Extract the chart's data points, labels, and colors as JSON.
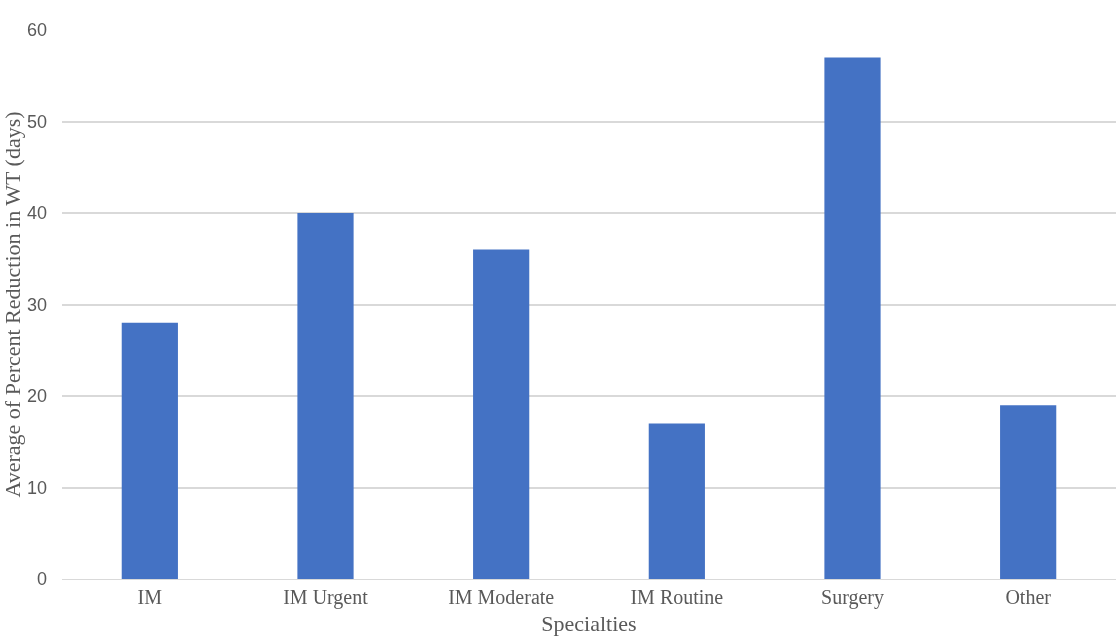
{
  "chart_data": {
    "type": "bar",
    "categories": [
      "IM",
      "IM Urgent",
      "IM Moderate",
      "IM Routine",
      "Surgery",
      "Other"
    ],
    "values": [
      28,
      40,
      36,
      17,
      57,
      19
    ],
    "color": "#4472c4",
    "xlabel": "Specialties",
    "ylabel": "Average of Percent Reduction in WT (days)",
    "ylim": [
      0,
      60
    ],
    "yticks": [
      0,
      10,
      20,
      30,
      40,
      50,
      60
    ],
    "grid": "y",
    "legend": false
  }
}
